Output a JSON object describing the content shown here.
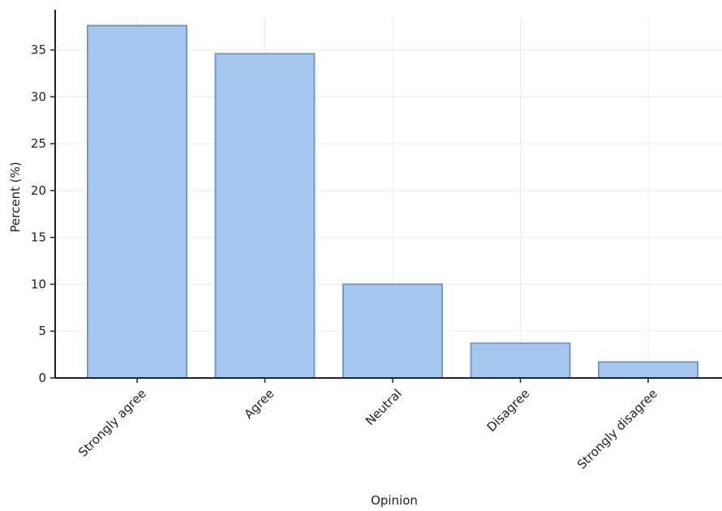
{
  "chart_data": {
    "type": "bar",
    "title": "",
    "xlabel": "Opinion",
    "ylabel": "Percent (%)",
    "categories": [
      "Strongly agree",
      "Agree",
      "Neutral",
      "Disagree",
      "Strongly disagree"
    ],
    "values": [
      37.6,
      34.6,
      10.0,
      3.7,
      1.7
    ],
    "ylim": [
      0,
      38.6
    ],
    "yticks": [
      0,
      5,
      10,
      15,
      20,
      25,
      30,
      35
    ],
    "grid": true,
    "legend": false,
    "colors": {
      "bar_fill": "#a7c8ee",
      "bar_edge": "#6f9bd0",
      "axis": "#222222",
      "grid": "#e8edf3"
    }
  }
}
